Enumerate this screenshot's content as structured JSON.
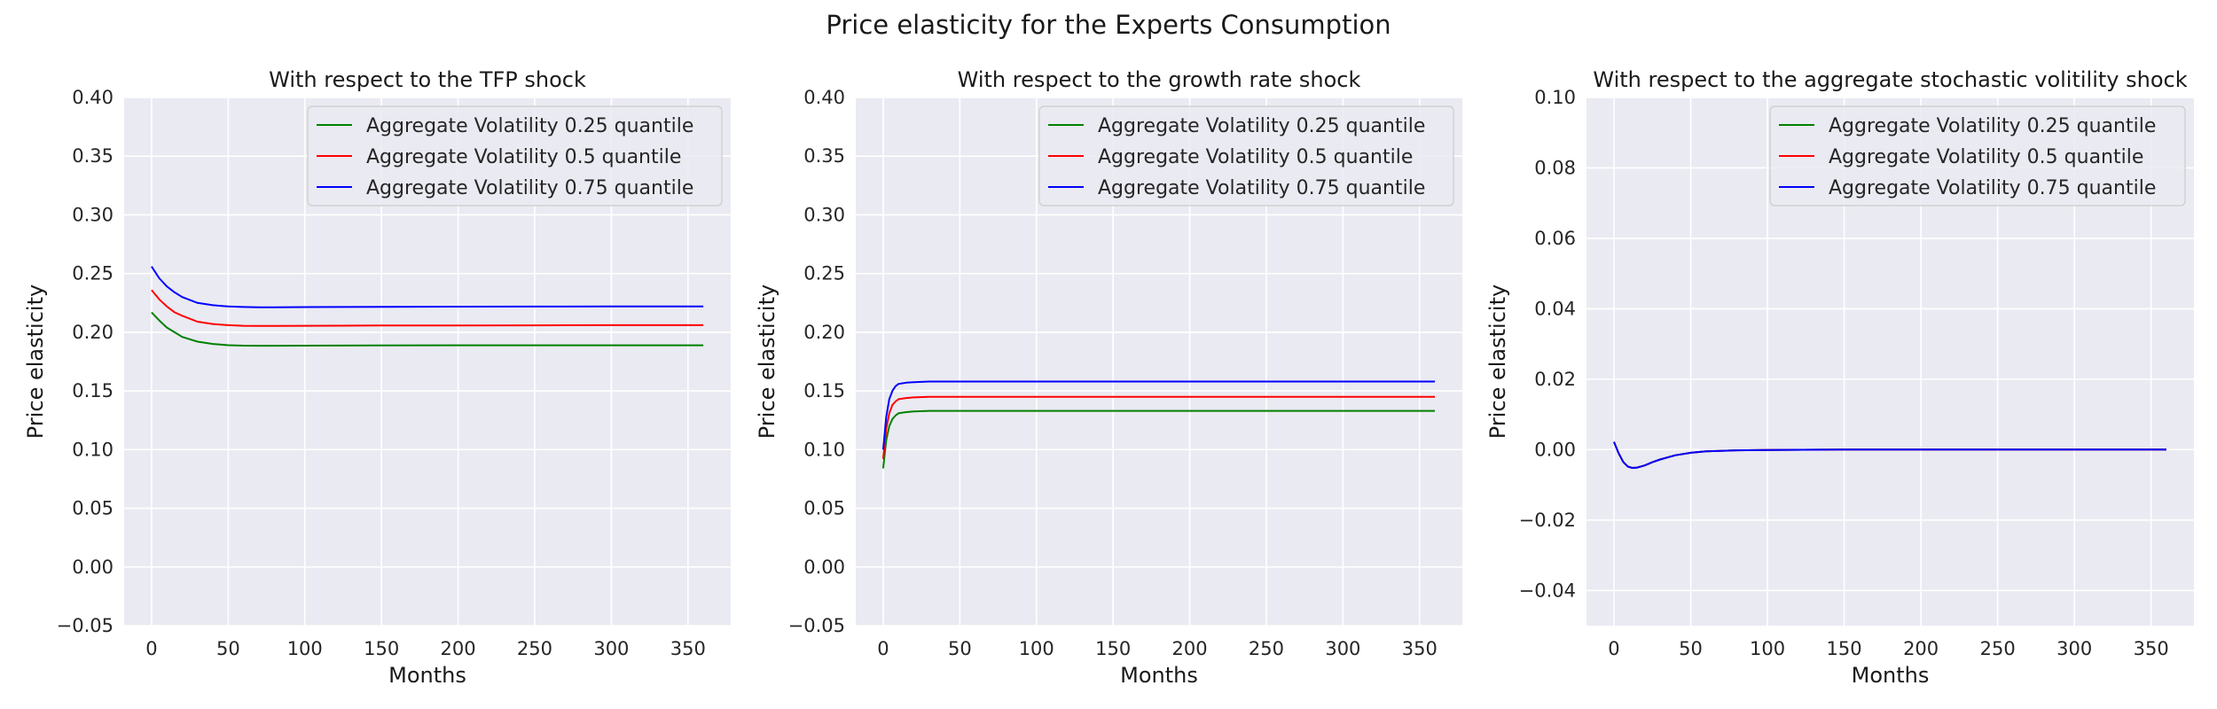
{
  "figure": {
    "title": "Price elasticity for the Experts Consumption"
  },
  "chart_data": [
    {
      "type": "line",
      "title": "With respect to the TFP shock",
      "xlabel": "Months",
      "ylabel": "Price elasticity",
      "xlim": [
        -17.9,
        377.9
      ],
      "ylim": [
        -0.05,
        0.4
      ],
      "xticks": [
        "0",
        "50",
        "100",
        "150",
        "200",
        "250",
        "300",
        "350"
      ],
      "yticks": [
        "−0.05",
        "0.00",
        "0.05",
        "0.10",
        "0.15",
        "0.20",
        "0.25",
        "0.30",
        "0.35",
        "0.40"
      ],
      "grid": true,
      "legend_position": "top-right",
      "series": [
        {
          "name": "Aggregate Volatility 0.25 quantile",
          "color": "#008000",
          "x": [
            0,
            5,
            10,
            15,
            20,
            30,
            40,
            50,
            60,
            70,
            80,
            100,
            150,
            200,
            250,
            300,
            360
          ],
          "y": [
            0.217,
            0.21,
            0.204,
            0.2,
            0.196,
            0.192,
            0.19,
            0.189,
            0.1886,
            0.1885,
            0.1885,
            0.1886,
            0.1888,
            0.1889,
            0.1889,
            0.1889,
            0.1889
          ]
        },
        {
          "name": "Aggregate Volatility 0.5 quantile",
          "color": "#ff0000",
          "x": [
            0,
            5,
            10,
            15,
            20,
            30,
            40,
            50,
            60,
            70,
            80,
            100,
            150,
            200,
            250,
            300,
            360
          ],
          "y": [
            0.236,
            0.228,
            0.222,
            0.217,
            0.214,
            0.209,
            0.207,
            0.206,
            0.2055,
            0.2054,
            0.2054,
            0.2055,
            0.2057,
            0.2058,
            0.2059,
            0.206,
            0.206
          ]
        },
        {
          "name": "Aggregate Volatility 0.75 quantile",
          "color": "#0000ff",
          "x": [
            0,
            5,
            10,
            15,
            20,
            30,
            40,
            50,
            60,
            70,
            80,
            100,
            150,
            200,
            250,
            300,
            360
          ],
          "y": [
            0.256,
            0.246,
            0.239,
            0.234,
            0.23,
            0.225,
            0.223,
            0.222,
            0.2215,
            0.2213,
            0.2213,
            0.2214,
            0.2216,
            0.2218,
            0.2219,
            0.222,
            0.222
          ]
        }
      ]
    },
    {
      "type": "line",
      "title": "With respect to the growth rate shock",
      "xlabel": "Months",
      "ylabel": "Price elasticity",
      "xlim": [
        -17.9,
        377.9
      ],
      "ylim": [
        -0.05,
        0.4
      ],
      "xticks": [
        "0",
        "50",
        "100",
        "150",
        "200",
        "250",
        "300",
        "350"
      ],
      "yticks": [
        "−0.05",
        "0.00",
        "0.05",
        "0.10",
        "0.15",
        "0.20",
        "0.25",
        "0.30",
        "0.35",
        "0.40"
      ],
      "grid": true,
      "legend_position": "top-right",
      "series": [
        {
          "name": "Aggregate Volatility 0.25 quantile",
          "color": "#008000",
          "x": [
            0,
            2,
            4,
            6,
            8,
            10,
            15,
            20,
            30,
            50,
            100,
            200,
            360
          ],
          "y": [
            0.084,
            0.108,
            0.12,
            0.126,
            0.129,
            0.131,
            0.132,
            0.1325,
            0.133,
            0.133,
            0.133,
            0.133,
            0.133
          ]
        },
        {
          "name": "Aggregate Volatility 0.5 quantile",
          "color": "#ff0000",
          "x": [
            0,
            2,
            4,
            6,
            8,
            10,
            15,
            20,
            30,
            50,
            100,
            200,
            360
          ],
          "y": [
            0.092,
            0.118,
            0.131,
            0.138,
            0.141,
            0.143,
            0.144,
            0.1445,
            0.145,
            0.145,
            0.145,
            0.145,
            0.145
          ]
        },
        {
          "name": "Aggregate Volatility 0.75 quantile",
          "color": "#0000ff",
          "x": [
            0,
            2,
            4,
            6,
            8,
            10,
            15,
            20,
            30,
            50,
            100,
            200,
            360
          ],
          "y": [
            0.1,
            0.128,
            0.143,
            0.15,
            0.154,
            0.156,
            0.157,
            0.1575,
            0.158,
            0.158,
            0.158,
            0.158,
            0.158
          ]
        }
      ]
    },
    {
      "type": "line",
      "title": "With respect to the aggregate stochastic volitility shock",
      "xlabel": "Months",
      "ylabel": "Price elasticity",
      "xlim": [
        -17.9,
        377.9
      ],
      "ylim": [
        -0.05,
        0.1
      ],
      "xticks": [
        "0",
        "50",
        "100",
        "150",
        "200",
        "250",
        "300",
        "350"
      ],
      "yticks": [
        "−0.04",
        "−0.02",
        "0.00",
        "0.02",
        "0.04",
        "0.06",
        "0.08",
        "0.10"
      ],
      "grid": true,
      "legend_position": "top-right",
      "series": [
        {
          "name": "Aggregate Volatility 0.25 quantile",
          "color": "#008000",
          "x": [
            0,
            3,
            6,
            9,
            12,
            15,
            20,
            25,
            30,
            40,
            50,
            60,
            80,
            100,
            150,
            200,
            360
          ],
          "y": [
            0.0022,
            -0.001,
            -0.0035,
            -0.0048,
            -0.0052,
            -0.0051,
            -0.0045,
            -0.0036,
            -0.0028,
            -0.0016,
            -0.0009,
            -0.0005,
            -0.0002,
            -0.0001,
            0.0,
            0.0,
            0.0
          ]
        },
        {
          "name": "Aggregate Volatility 0.5 quantile",
          "color": "#ff0000",
          "x": [
            0,
            3,
            6,
            9,
            12,
            15,
            20,
            25,
            30,
            40,
            50,
            60,
            80,
            100,
            150,
            200,
            360
          ],
          "y": [
            0.0022,
            -0.001,
            -0.0035,
            -0.0048,
            -0.0052,
            -0.0051,
            -0.0045,
            -0.0036,
            -0.0028,
            -0.0016,
            -0.0009,
            -0.0005,
            -0.0002,
            -0.0001,
            0.0,
            0.0,
            0.0
          ]
        },
        {
          "name": "Aggregate Volatility 0.75 quantile",
          "color": "#0000ff",
          "x": [
            0,
            3,
            6,
            9,
            12,
            15,
            20,
            25,
            30,
            40,
            50,
            60,
            80,
            100,
            150,
            200,
            360
          ],
          "y": [
            0.0022,
            -0.001,
            -0.0035,
            -0.0048,
            -0.0052,
            -0.0051,
            -0.0045,
            -0.0036,
            -0.0028,
            -0.0016,
            -0.0009,
            -0.0005,
            -0.0002,
            -0.0001,
            0.0,
            0.0,
            0.0
          ]
        }
      ]
    }
  ]
}
